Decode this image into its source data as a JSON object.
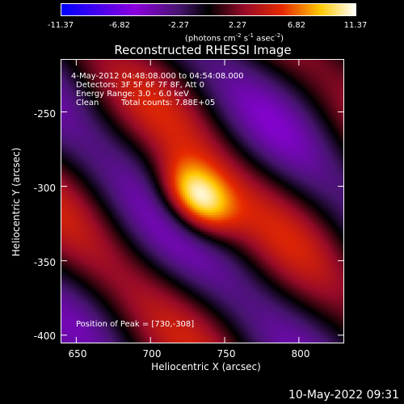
{
  "chart_data": {
    "type": "heatmap",
    "title": "Reconstructed RHESSI Image",
    "xlabel": "Heliocentric X (arcsec)",
    "ylabel": "Heliocentric Y (arcsec)",
    "xlim": [
      640,
      830
    ],
    "ylim": [
      -405,
      -215
    ],
    "x_ticks": [
      "650",
      "700",
      "750",
      "800"
    ],
    "y_ticks": [
      "-250",
      "-300",
      "-350",
      "-400"
    ],
    "x_tick_values": [
      650,
      700,
      750,
      800
    ],
    "y_tick_values": [
      -250,
      -300,
      -350,
      -400
    ],
    "colorbar": {
      "ticks": [
        "-11.37",
        "-6.82",
        "-2.27",
        "2.27",
        "6.82",
        "11.37"
      ],
      "tick_values": [
        -11.37,
        -6.82,
        -2.27,
        2.27,
        6.82,
        11.37
      ],
      "range": [
        -11.37,
        11.37
      ],
      "units_text": "(photons cm",
      "units_exp1": "-2",
      "units_s": " s",
      "units_exp2": "-1",
      "units_asec": " asec",
      "units_exp3": "-2",
      "units_close": ")"
    },
    "peak": {
      "x": 730,
      "y": -308,
      "value": 11.37
    },
    "annotations": {
      "time_range": "4-May-2012 04:48:08.000 to 04:54:08.000",
      "detectors": "Detectors: 3F 5F 6F 7F 8F, Att 0",
      "energy": "Energy Range: 3.0 - 6.0 keV",
      "clean_label": "Clean",
      "total_counts": "Total counts: 7.88E+05",
      "peak_position": "Position of Peak = [730,-308]"
    },
    "timestamp": "10-May-2022 09:31"
  }
}
